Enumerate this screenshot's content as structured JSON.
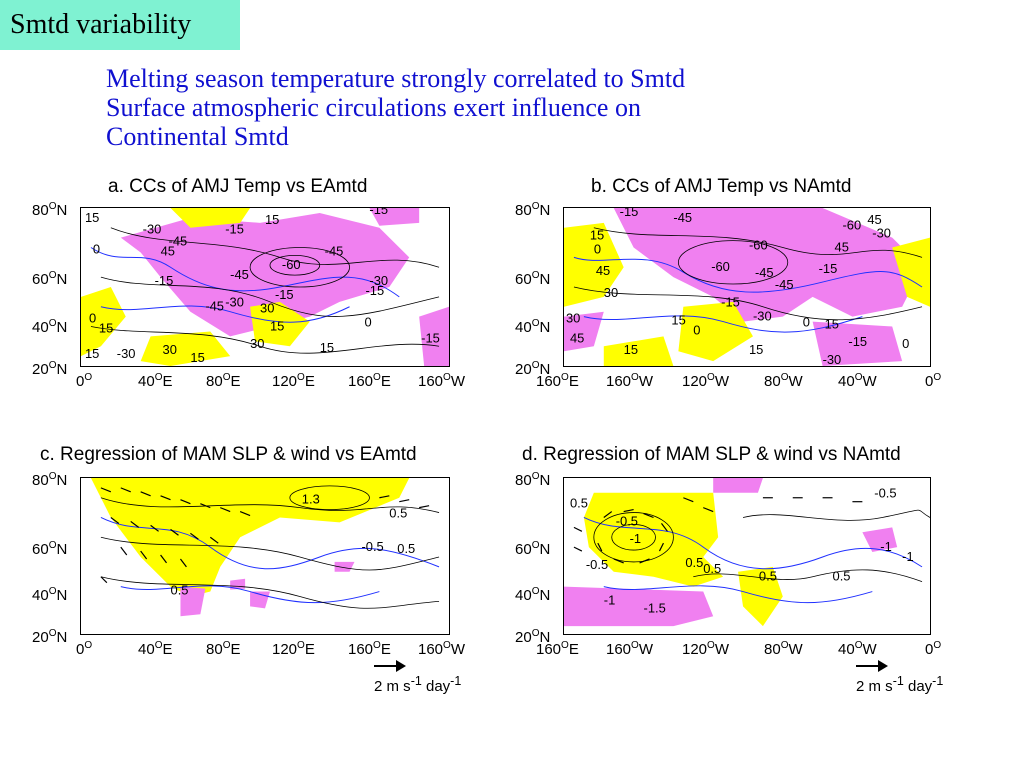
{
  "slide_title": "Smtd variability",
  "bullets": [
    "Melting season temperature strongly correlated to Smtd",
    "Surface atmospheric circulations exert influence on",
    "Continental Smtd"
  ],
  "colors": {
    "title_bg": "#7ff2d2",
    "bullet_text": "#1010d0",
    "positive_shade": "#ffff00",
    "negative_shade": "#f080f0",
    "coastline": "#2030ff",
    "contour": "#000000"
  },
  "panels": {
    "a": {
      "title": "a. CCs of AMJ Temp vs EAmtd",
      "lat_ticks": [
        "80",
        "60",
        "40",
        "20"
      ],
      "lon_ticks": [
        "0",
        "40",
        "80",
        "120",
        "160",
        "160"
      ],
      "lon_suffix": [
        "",
        "E",
        "E",
        "E",
        "E",
        "W"
      ],
      "contour_labels": [
        "15",
        "-30",
        "-45",
        "-15",
        "15",
        "-15",
        "45",
        "0",
        "-45",
        "-60",
        "-45",
        "-15",
        "-30",
        "-15",
        "-45",
        "-30",
        "30",
        "15",
        "0",
        "15",
        "-30",
        "30",
        "15",
        "30",
        "15",
        "-15",
        "0",
        "15",
        "-15"
      ]
    },
    "b": {
      "title": "b. CCs of AMJ Temp vs NAmtd",
      "lat_ticks": [
        "80",
        "60",
        "40",
        "20"
      ],
      "lon_ticks": [
        "160",
        "160",
        "120",
        "80",
        "40",
        "0"
      ],
      "lon_suffix": [
        "E",
        "W",
        "W",
        "W",
        "W",
        ""
      ],
      "contour_labels": [
        "-15",
        "-45",
        "-60",
        "45",
        "15",
        "-60",
        "45",
        "0",
        "-60",
        "-45",
        "-15",
        "-30",
        "45",
        "-45",
        "30",
        "-15",
        "-30",
        "15",
        "0",
        "15",
        "30",
        "45",
        "0",
        "15",
        "-30",
        "15",
        "0",
        "-15"
      ]
    },
    "c": {
      "title": "c. Regression of MAM SLP & wind vs EAmtd",
      "lat_ticks": [
        "80",
        "60",
        "40",
        "20"
      ],
      "lon_ticks": [
        "0",
        "40",
        "80",
        "120",
        "160",
        "160"
      ],
      "lon_suffix": [
        "",
        "E",
        "E",
        "E",
        "E",
        "W"
      ],
      "contour_labels": [
        "1.3",
        "0.5",
        "0.5",
        "-0.5",
        "0.5"
      ],
      "ref_vector": {
        "value": "2 m s",
        "exp1": "-1",
        "unit": " day",
        "exp2": "-1"
      }
    },
    "d": {
      "title": "d. Regression of MAM SLP & wind vs NAmtd",
      "lat_ticks": [
        "80",
        "60",
        "40",
        "20"
      ],
      "lon_ticks": [
        "160",
        "160",
        "120",
        "80",
        "40",
        "0"
      ],
      "lon_suffix": [
        "E",
        "W",
        "W",
        "W",
        "W",
        ""
      ],
      "contour_labels": [
        "0.5",
        "-1",
        "-0.5",
        "0.5",
        "0.5",
        "0.5",
        "-0.5",
        "-1",
        "-1.5",
        "-1",
        "0.5",
        "-0.5",
        "-1"
      ],
      "ref_vector": {
        "value": "2 m s",
        "exp1": "-1",
        "unit": " day",
        "exp2": "-1"
      }
    }
  }
}
